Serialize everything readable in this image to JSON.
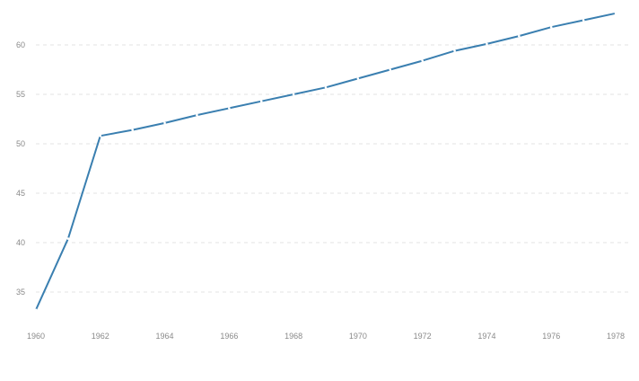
{
  "chart_data": {
    "type": "line",
    "title": "",
    "xlabel": "",
    "ylabel": "",
    "x": [
      1960,
      1961,
      1962,
      1963,
      1964,
      1965,
      1966,
      1967,
      1968,
      1969,
      1970,
      1971,
      1972,
      1973,
      1974,
      1975,
      1976,
      1977,
      1978
    ],
    "series": [
      {
        "values": [
          33.2,
          40.4,
          50.8,
          51.4,
          52.1,
          52.9,
          53.6,
          54.3,
          55.0,
          55.7,
          56.6,
          57.5,
          58.4,
          59.4,
          60.1,
          60.9,
          61.8,
          62.5,
          63.2
        ],
        "color": "#3a7fb0"
      }
    ],
    "xlim": [
      1960,
      1978
    ],
    "ylim": [
      32,
      64
    ],
    "x_ticks": [
      "1960",
      "1962",
      "1964",
      "1966",
      "1968",
      "1970",
      "1972",
      "1974",
      "1976",
      "1978"
    ],
    "y_ticks": [
      "35",
      "40",
      "45",
      "50",
      "55",
      "60"
    ],
    "grid": "horizontal dashed",
    "legend": "none"
  }
}
